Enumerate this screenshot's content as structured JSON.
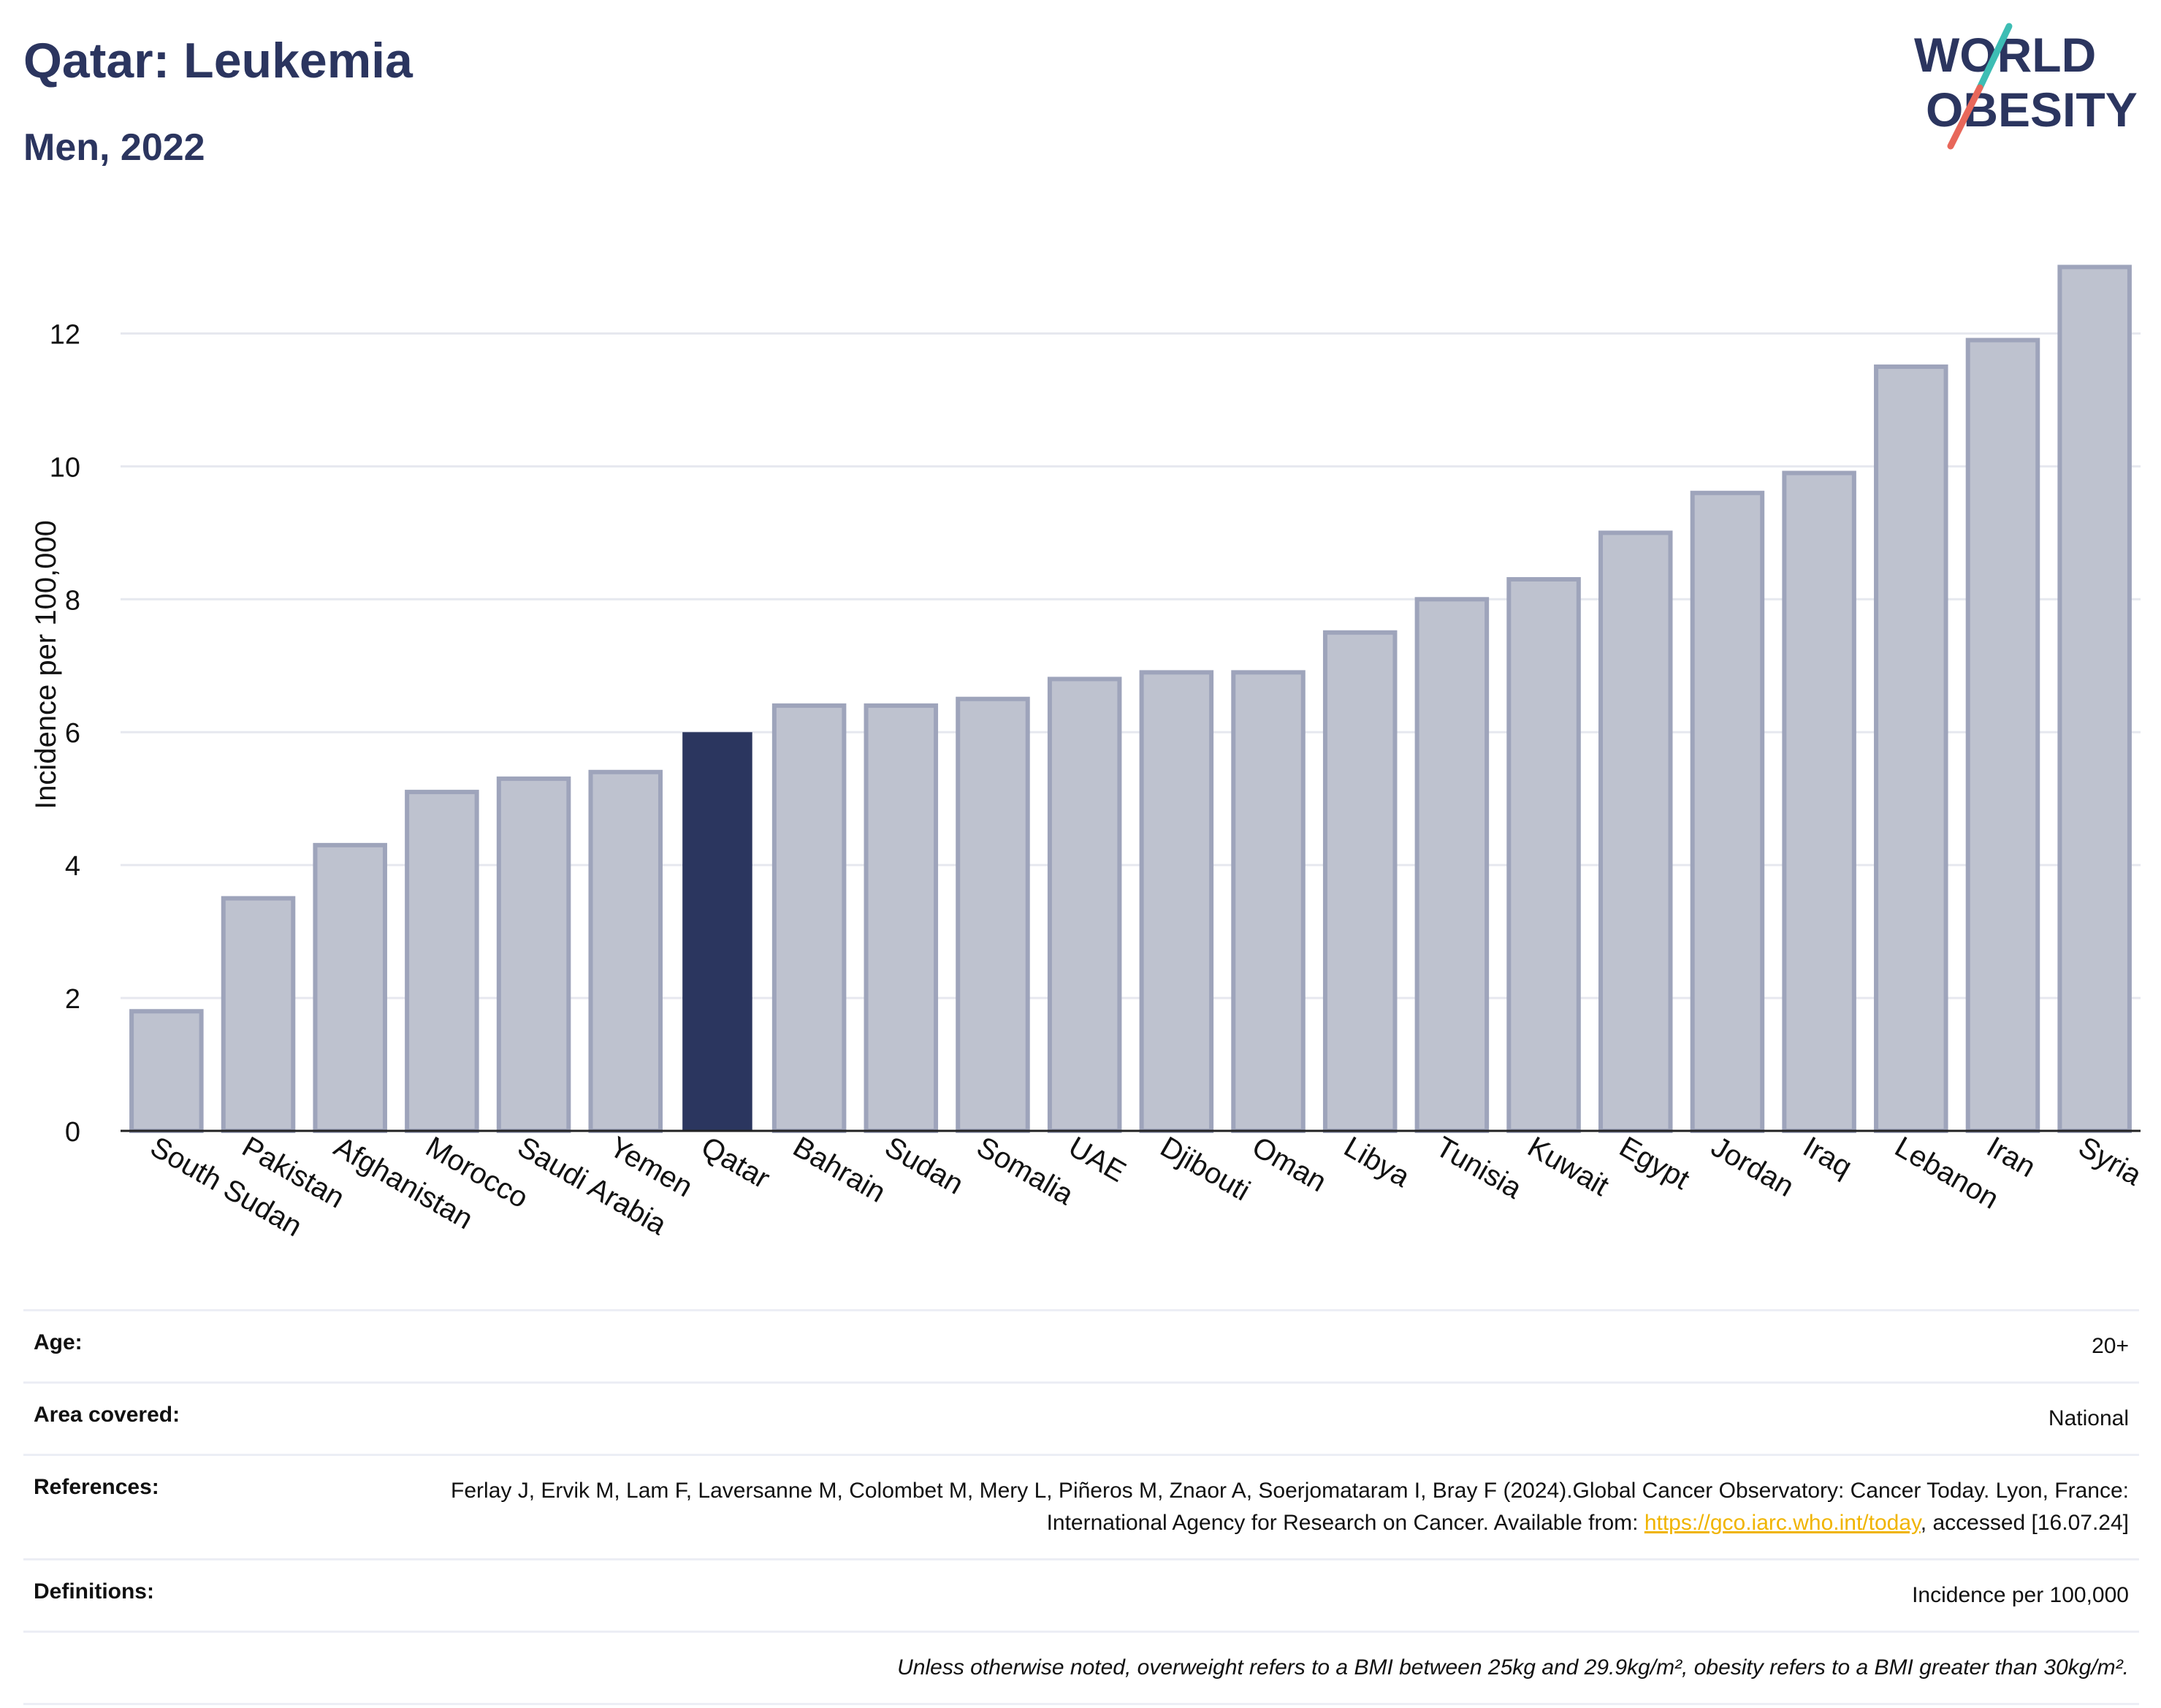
{
  "header": {
    "title": "Qatar: Leukemia",
    "subtitle": "Men, 2022"
  },
  "logo": {
    "line1": "WORLD",
    "line2": "OBESITY",
    "colors": {
      "text": "#2b355f",
      "slash_top": "#3dbdb4",
      "slash_bottom": "#e8675a"
    }
  },
  "chart_data": {
    "type": "bar",
    "ylabel": "Incidence per 100,000",
    "ylim": [
      0,
      13.5
    ],
    "yticks": [
      0,
      2,
      4,
      6,
      8,
      10,
      12
    ],
    "grid": true,
    "categories": [
      "South Sudan",
      "Pakistan",
      "Afghanistan",
      "Morocco",
      "Saudi Arabia",
      "Yemen",
      "Qatar",
      "Bahrain",
      "Sudan",
      "Somalia",
      "UAE",
      "Djibouti",
      "Oman",
      "Libya",
      "Tunisia",
      "Kuwait",
      "Egypt",
      "Jordan",
      "Iraq",
      "Lebanon",
      "Iran",
      "Syria"
    ],
    "values": [
      1.8,
      3.5,
      4.3,
      5.1,
      5.3,
      5.4,
      6.0,
      6.4,
      6.4,
      6.5,
      6.8,
      6.9,
      6.9,
      7.5,
      8.0,
      8.3,
      9.0,
      9.6,
      9.9,
      11.5,
      11.9,
      13.0
    ],
    "highlight": "Qatar",
    "colors": {
      "bar": "#bec2cf",
      "bar_border": "#9ea4bb",
      "highlight": "#2b365f",
      "grid": "#e6e8ef",
      "axis": "#222222"
    }
  },
  "info": {
    "age": {
      "label": "Age:",
      "value": "20+"
    },
    "area": {
      "label": "Area covered:",
      "value": "National"
    },
    "references": {
      "label": "References:",
      "text_before": "Ferlay J, Ervik M, Lam F, Laversanne M, Colombet M, Mery L, Piñeros M, Znaor A, Soerjomataram I, Bray F (2024).Global Cancer Observatory: Cancer Today. Lyon, France: International Agency for Research on Cancer. Available from: ",
      "link": "https://gco.iarc.who.int/today",
      "text_after": ", accessed [16.07.24]"
    },
    "definitions": {
      "label": "Definitions:",
      "value": "Incidence per 100,000"
    },
    "note": "Unless otherwise noted, overweight refers to a BMI between 25kg and 29.9kg/m², obesity refers to a BMI greater than 30kg/m²."
  }
}
